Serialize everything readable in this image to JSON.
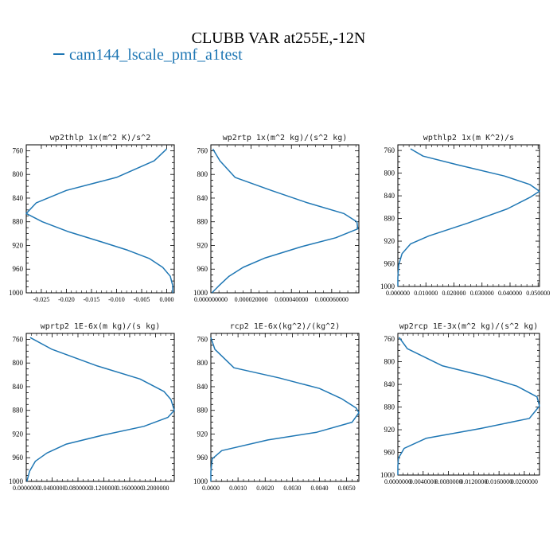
{
  "header": {
    "title": "CLUBB VAR at255E,-12N",
    "legend_label": "cam144_lscale_pmf_a1test"
  },
  "colors": {
    "series": "#1f77b4"
  },
  "chart_data": [
    {
      "type": "line",
      "title": "wp2thlp  1x(m^2 K)/s^2",
      "xlim": [
        -0.028,
        0.0015
      ],
      "ylim": [
        1000,
        750
      ],
      "yticks": [
        "760",
        "800",
        "840",
        "880",
        "920",
        "960",
        "1000"
      ],
      "xticks": [
        {
          "v": -0.025,
          "l": "-0.025"
        },
        {
          "v": -0.02,
          "l": "-0.020"
        },
        {
          "v": -0.015,
          "l": "-0.015"
        },
        {
          "v": -0.01,
          "l": "-0.010"
        },
        {
          "v": -0.005,
          "l": "-0.005"
        },
        {
          "v": 0.0,
          "l": "0.000"
        }
      ],
      "series": [
        {
          "values": [
            [
              0.0,
              757
            ],
            [
              -0.0025,
              777
            ],
            [
              -0.01,
              805
            ],
            [
              -0.02,
              827
            ],
            [
              -0.026,
              848
            ],
            [
              -0.028,
              866
            ],
            [
              -0.0248,
              880
            ],
            [
              -0.0195,
              897
            ],
            [
              -0.013,
              914
            ],
            [
              -0.0078,
              928
            ],
            [
              -0.0035,
              942
            ],
            [
              -0.0008,
              957
            ],
            [
              0.0007,
              972
            ],
            [
              0.0012,
              988
            ],
            [
              0.0012,
              1000
            ]
          ]
        }
      ]
    },
    {
      "type": "line",
      "title": "wp2rtp  1x(m^2 kg)/(s^2 kg)",
      "xlim": [
        0,
        7.35e-05
      ],
      "ylim": [
        1000,
        750
      ],
      "yticks": [
        "760",
        "800",
        "840",
        "880",
        "920",
        "960",
        "1000"
      ],
      "xticks": [
        {
          "v": 0,
          "l": "0.000000000"
        },
        {
          "v": 2e-05,
          "l": "0.000020000"
        },
        {
          "v": 4e-05,
          "l": "0.000040000"
        },
        {
          "v": 6e-05,
          "l": "0.000060000"
        }
      ],
      "series": [
        {
          "values": [
            [
              1e-06,
              757
            ],
            [
              4.5e-06,
              777
            ],
            [
              1.2e-05,
              805
            ],
            [
              3e-05,
              827
            ],
            [
              4.8e-05,
              848
            ],
            [
              6.6e-05,
              866
            ],
            [
              7.25e-05,
              880
            ],
            [
              7.3e-05,
              892
            ],
            [
              6.2e-05,
              907
            ],
            [
              4.5e-05,
              922
            ],
            [
              2.7e-05,
              941
            ],
            [
              1.6e-05,
              957
            ],
            [
              9e-06,
              972
            ],
            [
              4e-06,
              988
            ],
            [
              5e-07,
              1000
            ]
          ]
        }
      ]
    },
    {
      "type": "line",
      "title": "wpthlp2  1x(m K^2)/s",
      "xlim": [
        0,
        0.0505
      ],
      "ylim": [
        1000,
        750
      ],
      "yticks": [
        "760",
        "800",
        "840",
        "880",
        "920",
        "960",
        "1000"
      ],
      "xticks": [
        {
          "v": 0,
          "l": "0.000000"
        },
        {
          "v": 0.01,
          "l": "0.010000"
        },
        {
          "v": 0.02,
          "l": "0.020000"
        },
        {
          "v": 0.03,
          "l": "0.030000"
        },
        {
          "v": 0.04,
          "l": "0.040000"
        },
        {
          "v": 0.05,
          "l": "0.050000"
        }
      ],
      "series": [
        {
          "values": [
            [
              0.0045,
              757
            ],
            [
              0.009,
              770
            ],
            [
              0.021,
              785
            ],
            [
              0.038,
              805
            ],
            [
              0.047,
              820
            ],
            [
              0.0505,
              832
            ],
            [
              0.047,
              843
            ],
            [
              0.039,
              863
            ],
            [
              0.025,
              888
            ],
            [
              0.011,
              911
            ],
            [
              0.0045,
              925
            ],
            [
              0.0015,
              942
            ],
            [
              0.0003,
              962
            ],
            [
              0.0,
              984
            ],
            [
              0.0,
              1000
            ]
          ]
        }
      ]
    },
    {
      "type": "line",
      "title": "wprtp2  1E-6x(m kg)/(s kg)",
      "xlim": [
        0,
        0.229
      ],
      "ylim": [
        1000,
        750
      ],
      "yticks": [
        "760",
        "800",
        "840",
        "880",
        "920",
        "960",
        "1000"
      ],
      "xticks": [
        {
          "v": 0,
          "l": "0.0000000"
        },
        {
          "v": 0.04,
          "l": "0.0400000"
        },
        {
          "v": 0.08,
          "l": "0.0800000"
        },
        {
          "v": 0.12,
          "l": "0.1200000"
        },
        {
          "v": 0.16,
          "l": "0.1600000"
        },
        {
          "v": 0.2,
          "l": "0.2000000"
        }
      ],
      "series": [
        {
          "values": [
            [
              0.006,
              757
            ],
            [
              0.04,
              777
            ],
            [
              0.11,
              805
            ],
            [
              0.176,
              827
            ],
            [
              0.213,
              848
            ],
            [
              0.224,
              862
            ],
            [
              0.229,
              880
            ],
            [
              0.219,
              892
            ],
            [
              0.182,
              907
            ],
            [
              0.118,
              922
            ],
            [
              0.062,
              937
            ],
            [
              0.032,
              952
            ],
            [
              0.014,
              966
            ],
            [
              0.005,
              983
            ],
            [
              0.001,
              1000
            ]
          ]
        }
      ]
    },
    {
      "type": "line",
      "title": "rcp2  1E-6x(kg^2)/(kg^2)",
      "xlim": [
        0,
        0.00545
      ],
      "ylim": [
        1000,
        750
      ],
      "yticks": [
        "760",
        "800",
        "840",
        "880",
        "920",
        "960",
        "1000"
      ],
      "xticks": [
        {
          "v": 0,
          "l": "0.0000"
        },
        {
          "v": 0.001,
          "l": "0.0010"
        },
        {
          "v": 0.002,
          "l": "0.0020"
        },
        {
          "v": 0.003,
          "l": "0.0030"
        },
        {
          "v": 0.004,
          "l": "0.0040"
        },
        {
          "v": 0.005,
          "l": "0.0050"
        }
      ],
      "series": [
        {
          "values": [
            [
              0.0,
              757
            ],
            [
              0.00015,
              777
            ],
            [
              0.00085,
              808
            ],
            [
              0.0025,
              825
            ],
            [
              0.004,
              843
            ],
            [
              0.0048,
              860
            ],
            [
              0.00535,
              876
            ],
            [
              0.00545,
              884
            ],
            [
              0.0052,
              900
            ],
            [
              0.0039,
              917
            ],
            [
              0.0021,
              930
            ],
            [
              0.0004,
              948
            ],
            [
              5e-05,
              962
            ],
            [
              0.0,
              983
            ],
            [
              0.0,
              1000
            ]
          ]
        }
      ]
    },
    {
      "type": "line",
      "title": "wp2rcp  1E-3x(m^2 kg)/(s^2 kg)",
      "xlim": [
        0,
        0.0224
      ],
      "ylim": [
        1000,
        750
      ],
      "yticks": [
        "760",
        "800",
        "840",
        "880",
        "920",
        "960",
        "1000"
      ],
      "xticks": [
        {
          "v": 0,
          "l": "0.0000000"
        },
        {
          "v": 0.004,
          "l": "0.0040000"
        },
        {
          "v": 0.008,
          "l": "0.0080000"
        },
        {
          "v": 0.012,
          "l": "0.0120000"
        },
        {
          "v": 0.016,
          "l": "0.0160000"
        },
        {
          "v": 0.02,
          "l": "0.0200000"
        }
      ],
      "series": [
        {
          "values": [
            [
              0.0002,
              757
            ],
            [
              0.0015,
              777
            ],
            [
              0.007,
              807
            ],
            [
              0.0135,
              825
            ],
            [
              0.0188,
              843
            ],
            [
              0.022,
              862
            ],
            [
              0.0224,
              878
            ],
            [
              0.0208,
              900
            ],
            [
              0.013,
              918
            ],
            [
              0.0045,
              935
            ],
            [
              0.001,
              953
            ],
            [
              0.0001,
              970
            ],
            [
              0.0,
              984
            ],
            [
              0.0,
              1000
            ]
          ]
        }
      ]
    }
  ]
}
